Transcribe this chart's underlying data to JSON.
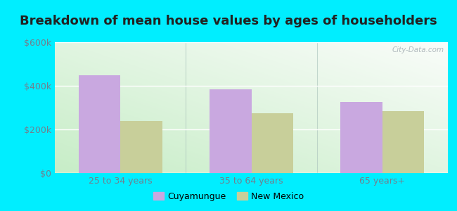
{
  "title": "Breakdown of mean house values by ages of householders",
  "categories": [
    "25 to 34 years",
    "35 to 64 years",
    "65 years+"
  ],
  "cuyamungue_values": [
    450000,
    385000,
    325000
  ],
  "new_mexico_values": [
    240000,
    275000,
    285000
  ],
  "bar_color_cuyamungue": "#c9a8e0",
  "bar_color_new_mexico": "#c8cf9a",
  "ylim": [
    0,
    600000
  ],
  "yticks": [
    0,
    200000,
    400000,
    600000
  ],
  "ytick_labels": [
    "$0",
    "$200k",
    "$400k",
    "$600k"
  ],
  "legend_labels": [
    "Cuyamungue",
    "New Mexico"
  ],
  "background_outer": "#00eeff",
  "grid_color": "#e0e8e0",
  "title_fontsize": 13,
  "tick_fontsize": 9,
  "bar_width": 0.32,
  "watermark_text": "City-Data.com",
  "bg_colors": [
    "#c8e8c8",
    "#e8f5e8",
    "#f0f8f0",
    "#f8fcf8",
    "#f8f8ff",
    "#f0f0ff"
  ],
  "group_divider_color": "#b0c8c0",
  "tick_color": "#708090"
}
